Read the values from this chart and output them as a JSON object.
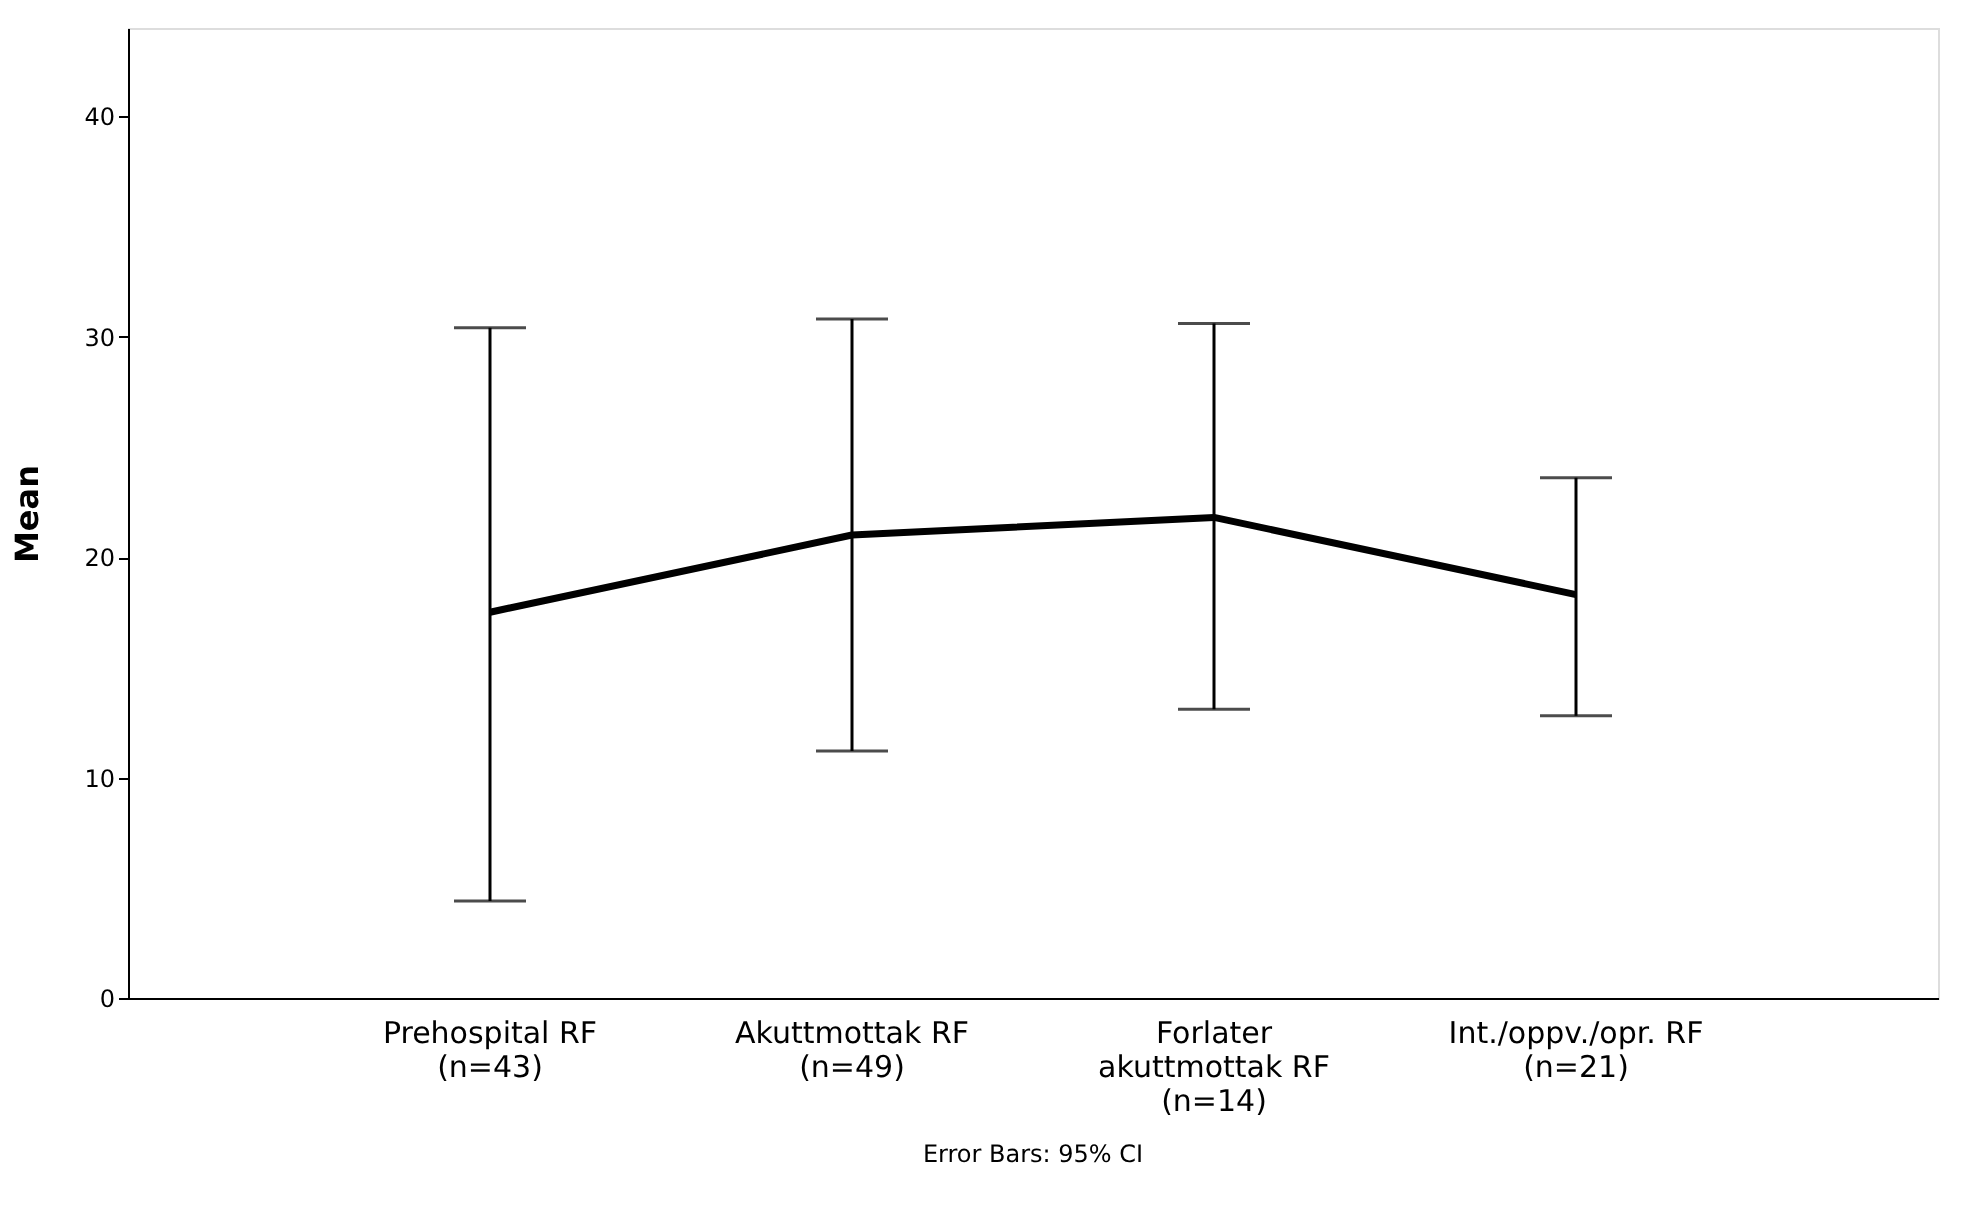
{
  "chart_data": {
    "type": "line",
    "categories": [
      "Prehospital RF\n(n=43)",
      "Akuttmottak RF\n(n=49)",
      "Forlater\nakuttmottak RF\n(n=14)",
      "Int./oppv./opr. RF\n(n=21)"
    ],
    "values": [
      17.5,
      21.0,
      21.8,
      18.3
    ],
    "errors": [
      [
        4.4,
        30.4
      ],
      [
        11.2,
        30.8
      ],
      [
        13.1,
        30.6
      ],
      [
        12.8,
        23.6
      ]
    ],
    "color": "#000000",
    "ylabel": "Mean",
    "ylim": [
      0,
      44
    ],
    "yticks": [
      0,
      10,
      20,
      30,
      40
    ],
    "grid": false,
    "marker": "none",
    "line_style": "solid",
    "annotations": [
      "Error Bars: 95% CI"
    ]
  }
}
